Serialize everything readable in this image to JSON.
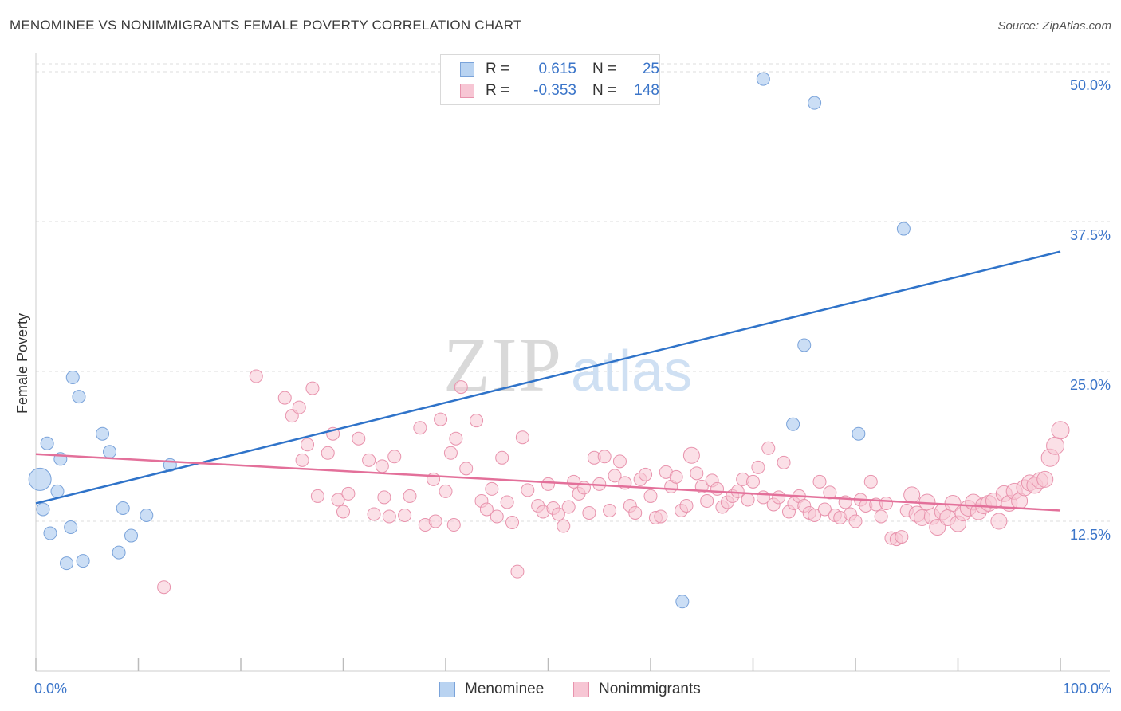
{
  "title": "MENOMINEE VS NONIMMIGRANTS FEMALE POVERTY CORRELATION CHART",
  "source": "Source: ZipAtlas.com",
  "watermark": {
    "zip": "ZIP",
    "atlas": "atlas"
  },
  "legend_top": {
    "rows": [
      {
        "r_label": "R =",
        "r_value": "0.615",
        "n_label": "N =",
        "n_value": "25"
      },
      {
        "r_label": "R =",
        "r_value": "-0.353",
        "n_label": "N =",
        "n_value": "148"
      }
    ]
  },
  "legend_bottom": {
    "items": [
      "Menominee",
      "Nonimmigrants"
    ]
  },
  "colors": {
    "blue_fill": "#b9d3f1",
    "blue_stroke": "#7aa3da",
    "blue_line": "#2f73c9",
    "pink_fill": "#f7c6d4",
    "pink_stroke": "#e893ad",
    "pink_line": "#e3709a",
    "tick_text": "#3b75c9",
    "grid": "#dddddd"
  },
  "chart_data": {
    "type": "scatter",
    "title": "MENOMINEE VS NONIMMIGRANTS FEMALE POVERTY CORRELATION CHART",
    "xlabel": "",
    "ylabel": "Female Poverty",
    "xlim": [
      0,
      100
    ],
    "ylim": [
      0,
      51.2
    ],
    "x_tick_labels": [
      "0.0%",
      "100.0%"
    ],
    "y_ticks": [
      {
        "value": 12.5,
        "label": "12.5%"
      },
      {
        "value": 25.0,
        "label": "25.0%"
      },
      {
        "value": 37.5,
        "label": "37.5%"
      },
      {
        "value": 50.0,
        "label": "50.0%"
      }
    ],
    "series": [
      {
        "name": "Menominee",
        "r": 0.615,
        "n": 25,
        "trend": [
          [
            0,
            14.0
          ],
          [
            100,
            35.0
          ]
        ],
        "points": [
          [
            0.4,
            16.0,
            14
          ],
          [
            0.7,
            13.5,
            8
          ],
          [
            1.1,
            19.0,
            8
          ],
          [
            1.4,
            11.5,
            8
          ],
          [
            2.1,
            15.0,
            8
          ],
          [
            2.4,
            17.7,
            8
          ],
          [
            3.4,
            12.0,
            8
          ],
          [
            3.6,
            24.5,
            8
          ],
          [
            3.0,
            9.0,
            8
          ],
          [
            4.2,
            22.9,
            8
          ],
          [
            4.6,
            9.2,
            8
          ],
          [
            6.5,
            19.8,
            8
          ],
          [
            7.2,
            18.3,
            8
          ],
          [
            8.1,
            9.9,
            8
          ],
          [
            8.5,
            13.6,
            8
          ],
          [
            9.3,
            11.3,
            8
          ],
          [
            10.8,
            13.0,
            8
          ],
          [
            13.1,
            17.2,
            8
          ],
          [
            71.0,
            49.4,
            8
          ],
          [
            76.0,
            47.4,
            8
          ],
          [
            75.0,
            27.2,
            8
          ],
          [
            73.9,
            20.6,
            8
          ],
          [
            80.3,
            19.8,
            8
          ],
          [
            84.7,
            36.9,
            8
          ],
          [
            63.1,
            5.8,
            8
          ]
        ]
      },
      {
        "name": "Nonimmigrants",
        "r": -0.353,
        "n": 148,
        "trend": [
          [
            0,
            18.1
          ],
          [
            100,
            13.4
          ]
        ],
        "points": [
          [
            12.5,
            7.0,
            8
          ],
          [
            21.5,
            24.6,
            8
          ],
          [
            24.3,
            22.8,
            8
          ],
          [
            25.0,
            21.3,
            8
          ],
          [
            25.7,
            22.0,
            8
          ],
          [
            26.0,
            17.6,
            8
          ],
          [
            26.5,
            18.9,
            8
          ],
          [
            27.0,
            23.6,
            8
          ],
          [
            27.5,
            14.6,
            8
          ],
          [
            28.5,
            18.2,
            8
          ],
          [
            29.0,
            19.8,
            8
          ],
          [
            29.5,
            14.3,
            8
          ],
          [
            30.0,
            13.3,
            8
          ],
          [
            30.5,
            14.8,
            8
          ],
          [
            31.5,
            19.4,
            8
          ],
          [
            32.5,
            17.6,
            8
          ],
          [
            33.0,
            13.1,
            8
          ],
          [
            34.0,
            14.5,
            8
          ],
          [
            34.5,
            12.9,
            8
          ],
          [
            35.0,
            17.9,
            8
          ],
          [
            36.0,
            13.0,
            8
          ],
          [
            36.5,
            14.6,
            8
          ],
          [
            37.5,
            20.3,
            8
          ],
          [
            38.0,
            12.2,
            8
          ],
          [
            39.0,
            12.5,
            8
          ],
          [
            39.5,
            21.0,
            8
          ],
          [
            40.0,
            15.0,
            8
          ],
          [
            40.5,
            18.2,
            8
          ],
          [
            41.0,
            19.4,
            8
          ],
          [
            41.5,
            23.7,
            8
          ],
          [
            42.0,
            16.9,
            8
          ],
          [
            43.0,
            20.9,
            8
          ],
          [
            43.5,
            14.2,
            8
          ],
          [
            44.0,
            13.5,
            8
          ],
          [
            44.5,
            15.2,
            8
          ],
          [
            45.5,
            17.8,
            8
          ],
          [
            45.0,
            12.9,
            8
          ],
          [
            46.0,
            14.1,
            8
          ],
          [
            46.5,
            12.4,
            8
          ],
          [
            47.0,
            8.3,
            8
          ],
          [
            47.5,
            19.5,
            8
          ],
          [
            48.0,
            15.1,
            8
          ],
          [
            49.0,
            13.8,
            8
          ],
          [
            49.5,
            13.3,
            8
          ],
          [
            50.0,
            15.6,
            8
          ],
          [
            50.5,
            13.6,
            8
          ],
          [
            51.0,
            13.1,
            8
          ],
          [
            51.5,
            12.1,
            8
          ],
          [
            52.0,
            13.7,
            8
          ],
          [
            52.5,
            15.8,
            8
          ],
          [
            53.0,
            14.8,
            8
          ],
          [
            53.5,
            15.3,
            8
          ],
          [
            54.0,
            13.2,
            8
          ],
          [
            54.5,
            17.8,
            8
          ],
          [
            55.0,
            15.6,
            8
          ],
          [
            55.5,
            17.9,
            8
          ],
          [
            56.0,
            13.4,
            8
          ],
          [
            56.5,
            16.3,
            8
          ],
          [
            57.0,
            17.5,
            8
          ],
          [
            57.5,
            15.7,
            8
          ],
          [
            58.0,
            13.8,
            8
          ],
          [
            58.5,
            13.2,
            8
          ],
          [
            59.0,
            16.0,
            8
          ],
          [
            59.5,
            16.4,
            8
          ],
          [
            60.0,
            14.6,
            8
          ],
          [
            60.5,
            12.8,
            8
          ],
          [
            61.0,
            12.9,
            8
          ],
          [
            61.5,
            16.6,
            8
          ],
          [
            62.0,
            15.4,
            8
          ],
          [
            62.5,
            16.2,
            8
          ],
          [
            63.0,
            13.4,
            8
          ],
          [
            63.5,
            13.8,
            8
          ],
          [
            64.0,
            18.0,
            10
          ],
          [
            64.5,
            16.5,
            8
          ],
          [
            65.0,
            15.4,
            8
          ],
          [
            65.5,
            14.2,
            8
          ],
          [
            66.0,
            15.9,
            8
          ],
          [
            66.5,
            15.2,
            8
          ],
          [
            67.0,
            13.7,
            8
          ],
          [
            67.5,
            14.1,
            8
          ],
          [
            68.0,
            14.6,
            8
          ],
          [
            68.5,
            15.0,
            8
          ],
          [
            69.0,
            16.0,
            8
          ],
          [
            69.5,
            14.3,
            8
          ],
          [
            70.0,
            15.8,
            8
          ],
          [
            70.5,
            17.0,
            8
          ],
          [
            71.0,
            14.5,
            8
          ],
          [
            71.5,
            18.6,
            8
          ],
          [
            72.0,
            13.9,
            8
          ],
          [
            72.5,
            14.5,
            8
          ],
          [
            73.0,
            17.4,
            8
          ],
          [
            73.5,
            13.3,
            8
          ],
          [
            74.0,
            14.0,
            8
          ],
          [
            74.5,
            14.6,
            8
          ],
          [
            75.0,
            13.8,
            8
          ],
          [
            75.5,
            13.2,
            8
          ],
          [
            76.0,
            13.0,
            8
          ],
          [
            76.5,
            15.8,
            8
          ],
          [
            77.0,
            13.5,
            8
          ],
          [
            77.5,
            14.9,
            8
          ],
          [
            78.0,
            13.0,
            8
          ],
          [
            78.5,
            12.8,
            8
          ],
          [
            79.0,
            14.1,
            8
          ],
          [
            79.5,
            13.1,
            8
          ],
          [
            80.0,
            12.5,
            8
          ],
          [
            80.5,
            14.3,
            8
          ],
          [
            81.0,
            13.8,
            8
          ],
          [
            81.5,
            15.8,
            8
          ],
          [
            82.0,
            13.9,
            8
          ],
          [
            82.5,
            12.9,
            8
          ],
          [
            83.0,
            14.0,
            8
          ],
          [
            83.5,
            11.1,
            8
          ],
          [
            84.0,
            11.0,
            8
          ],
          [
            84.5,
            11.2,
            8
          ],
          [
            85.0,
            13.4,
            8
          ],
          [
            85.5,
            14.7,
            10
          ],
          [
            86.0,
            13.1,
            10
          ],
          [
            86.5,
            12.8,
            10
          ],
          [
            87.0,
            14.1,
            10
          ],
          [
            87.5,
            12.9,
            10
          ],
          [
            88.0,
            12.0,
            10
          ],
          [
            88.5,
            13.3,
            10
          ],
          [
            89.0,
            12.8,
            10
          ],
          [
            89.5,
            14.0,
            10
          ],
          [
            90.0,
            12.3,
            10
          ],
          [
            90.5,
            13.2,
            10
          ],
          [
            91.0,
            13.6,
            10
          ],
          [
            91.5,
            14.1,
            10
          ],
          [
            92.0,
            13.3,
            10
          ],
          [
            92.5,
            13.8,
            10
          ],
          [
            93.0,
            14.0,
            10
          ],
          [
            93.5,
            14.2,
            10
          ],
          [
            94.0,
            12.5,
            10
          ],
          [
            94.5,
            14.8,
            10
          ],
          [
            95.0,
            14.0,
            10
          ],
          [
            95.5,
            15.0,
            10
          ],
          [
            96.0,
            14.2,
            10
          ],
          [
            96.5,
            15.3,
            10
          ],
          [
            97.0,
            15.7,
            10
          ],
          [
            97.5,
            15.5,
            10
          ],
          [
            98.0,
            15.9,
            10
          ],
          [
            98.5,
            16.0,
            10
          ],
          [
            99.0,
            17.8,
            11
          ],
          [
            99.5,
            18.8,
            11
          ],
          [
            100.0,
            20.1,
            11
          ],
          [
            38.8,
            16.0,
            8
          ],
          [
            33.8,
            17.1,
            8
          ],
          [
            40.8,
            12.2,
            8
          ]
        ]
      }
    ],
    "legend_position": "bottom",
    "grid": true
  }
}
